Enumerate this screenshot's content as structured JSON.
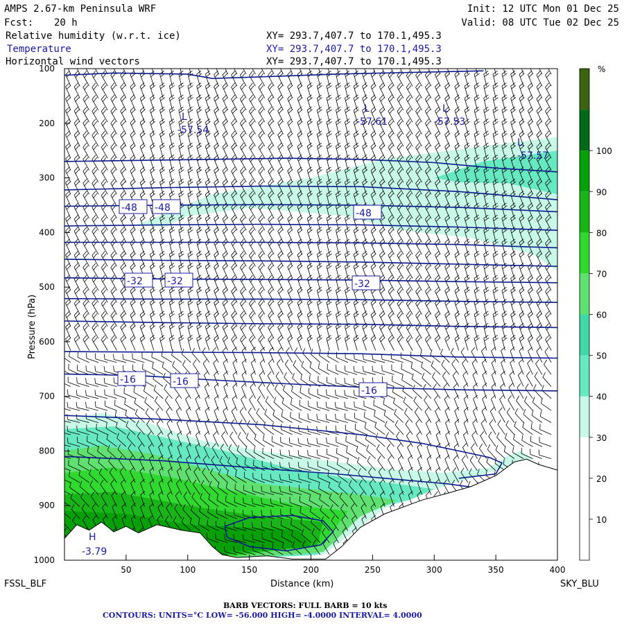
{
  "header": {
    "title": "AMPS 2.67-km Peninsula WRF",
    "fcst_label": "Fcst:",
    "fcst_value": "20 h",
    "init": "Init: 12 UTC Mon 01 Dec 25",
    "valid": "Valid: 08 UTC Tue 02 Dec 25",
    "fields": [
      {
        "name": "Relative humidity (w.r.t. ice)",
        "xy": "XY= 293.7,407.7 to 170.1,495.3",
        "color": "#000000"
      },
      {
        "name": "Temperature",
        "xy": "XY= 293.7,407.7 to 170.1,495.3",
        "color": "#1a1aa0"
      },
      {
        "name": "Horizontal wind vectors",
        "xy": "XY= 293.7,407.7 to 170.1,495.3",
        "color": "#000000"
      }
    ]
  },
  "footer": {
    "left_station": "FSSL_BLF",
    "right_station": "SKY_BLU",
    "barb_note": "BARB VECTORS:  FULL BARB = 10 kts",
    "contour_note": "CONTOURS:  UNITS=°C  LOW= -56.000      HIGH= -4.0000      INTERVAL=    4.0000"
  },
  "chart_data": {
    "type": "cross-section",
    "xlabel": "Distance (km)",
    "ylabel": "Pressure (hPa)",
    "xlim": [
      0,
      400
    ],
    "ylim": [
      1000,
      100
    ],
    "x_ticks": [
      50,
      100,
      150,
      200,
      250,
      300,
      350,
      400
    ],
    "y_ticks": [
      100,
      200,
      300,
      400,
      500,
      600,
      700,
      800,
      900,
      1000
    ],
    "colorbar": {
      "unit": "%",
      "levels": [
        0,
        10,
        20,
        30,
        40,
        50,
        60,
        70,
        80,
        90,
        100,
        110
      ],
      "tick_labels": [
        10,
        20,
        30,
        40,
        50,
        60,
        70,
        80,
        90,
        100
      ],
      "colors": [
        "#ffffff",
        "#ffffff",
        "#ffffff",
        "#c8f8e8",
        "#66e8c0",
        "#40d8a8",
        "#60e070",
        "#30d830",
        "#18b418",
        "#08a008",
        "#006a1a",
        "#3a6410"
      ]
    },
    "rh_layers": [
      {
        "level": 30,
        "color": "#c8f8e8",
        "polygon": [
          [
            60,
            385
          ],
          [
            120,
            330
          ],
          [
            200,
            300
          ],
          [
            260,
            265
          ],
          [
            330,
            245
          ],
          [
            400,
            225
          ],
          [
            400,
            470
          ],
          [
            380,
            440
          ],
          [
            330,
            410
          ],
          [
            270,
            395
          ],
          [
            230,
            370
          ],
          [
            150,
            355
          ],
          [
            100,
            370
          ],
          [
            80,
            390
          ]
        ]
      },
      {
        "level": 40,
        "color": "#66e8c0",
        "polygon": [
          [
            300,
            300
          ],
          [
            340,
            270
          ],
          [
            400,
            250
          ],
          [
            400,
            330
          ],
          [
            360,
            310
          ],
          [
            320,
            308
          ]
        ]
      },
      {
        "level": 30,
        "color": "#c8f8e8",
        "polygon": [
          [
            0,
            745
          ],
          [
            30,
            730
          ],
          [
            70,
            750
          ],
          [
            110,
            780
          ],
          [
            160,
            800
          ],
          [
            220,
            820
          ],
          [
            270,
            835
          ],
          [
            310,
            840
          ],
          [
            345,
            830
          ],
          [
            360,
            808
          ],
          [
            370,
            800
          ],
          [
            380,
            815
          ],
          [
            330,
            850
          ],
          [
            300,
            870
          ],
          [
            260,
            905
          ],
          [
            210,
            990
          ],
          [
            120,
            1000
          ],
          [
            0,
            1000
          ]
        ]
      },
      {
        "level": 40,
        "color": "#66e8c0",
        "polygon": [
          [
            0,
            760
          ],
          [
            40,
            755
          ],
          [
            80,
            775
          ],
          [
            130,
            800
          ],
          [
            180,
            830
          ],
          [
            230,
            850
          ],
          [
            270,
            860
          ],
          [
            300,
            870
          ],
          [
            280,
            890
          ],
          [
            240,
            910
          ],
          [
            205,
            990
          ],
          [
            120,
            1000
          ],
          [
            0,
            1000
          ]
        ]
      },
      {
        "level": 60,
        "color": "#60e070",
        "polygon": [
          [
            0,
            800
          ],
          [
            30,
            790
          ],
          [
            70,
            805
          ],
          [
            110,
            830
          ],
          [
            160,
            860
          ],
          [
            200,
            870
          ],
          [
            240,
            880
          ],
          [
            270,
            890
          ],
          [
            240,
            920
          ],
          [
            210,
            985
          ],
          [
            120,
            1000
          ],
          [
            0,
            1000
          ]
        ]
      },
      {
        "level": 70,
        "color": "#30d830",
        "polygon": [
          [
            0,
            840
          ],
          [
            40,
            830
          ],
          [
            90,
            850
          ],
          [
            140,
            875
          ],
          [
            190,
            900
          ],
          [
            230,
            910
          ],
          [
            210,
            970
          ],
          [
            130,
            995
          ],
          [
            0,
            1000
          ]
        ]
      },
      {
        "level": 80,
        "color": "#18b418",
        "polygon": [
          [
            0,
            880
          ],
          [
            40,
            875
          ],
          [
            100,
            900
          ],
          [
            160,
            920
          ],
          [
            210,
            930
          ],
          [
            205,
            975
          ],
          [
            130,
            990
          ],
          [
            0,
            995
          ]
        ]
      },
      {
        "level": 90,
        "color": "#08a008",
        "polygon": [
          [
            0,
            910
          ],
          [
            50,
            915
          ],
          [
            100,
            935
          ],
          [
            150,
            940
          ],
          [
            190,
            945
          ],
          [
            200,
            975
          ],
          [
            130,
            985
          ],
          [
            0,
            990
          ]
        ]
      }
    ],
    "terrain": [
      [
        0,
        960
      ],
      [
        10,
        935
      ],
      [
        20,
        945
      ],
      [
        30,
        930
      ],
      [
        40,
        948
      ],
      [
        50,
        938
      ],
      [
        60,
        950
      ],
      [
        75,
        935
      ],
      [
        95,
        945
      ],
      [
        110,
        950
      ],
      [
        120,
        975
      ],
      [
        128,
        990
      ],
      [
        140,
        995
      ],
      [
        165,
        992
      ],
      [
        185,
        998
      ],
      [
        212,
        998
      ],
      [
        225,
        975
      ],
      [
        240,
        940
      ],
      [
        260,
        915
      ],
      [
        290,
        890
      ],
      [
        310,
        878
      ],
      [
        330,
        865
      ],
      [
        350,
        845
      ],
      [
        365,
        820
      ],
      [
        375,
        815
      ],
      [
        385,
        825
      ],
      [
        400,
        835
      ],
      [
        400,
        1000
      ],
      [
        0,
        1000
      ]
    ],
    "temperature_contours": [
      {
        "points": [
          [
            0,
            112
          ],
          [
            40,
            108
          ],
          [
            100,
            110
          ],
          [
            120,
            118
          ],
          [
            160,
            115
          ],
          [
            220,
            110
          ],
          [
            280,
            107
          ],
          [
            340,
            104
          ]
        ]
      },
      {
        "points": [
          [
            0,
            270
          ],
          [
            60,
            268
          ],
          [
            120,
            266
          ],
          [
            180,
            264
          ],
          [
            240,
            266
          ],
          [
            300,
            272
          ],
          [
            350,
            282
          ],
          [
            400,
            289
          ]
        ]
      },
      {
        "points": [
          [
            0,
            322
          ],
          [
            80,
            318
          ],
          [
            160,
            315
          ],
          [
            240,
            316
          ],
          [
            320,
            325
          ],
          [
            400,
            340
          ]
        ]
      },
      {
        "points": [
          [
            0,
            352
          ],
          [
            80,
            350
          ],
          [
            160,
            349
          ],
          [
            240,
            350
          ],
          [
            320,
            354
          ],
          [
            400,
            362
          ]
        ]
      },
      {
        "points": [
          [
            0,
            388
          ],
          [
            80,
            386
          ],
          [
            160,
            385
          ],
          [
            240,
            386
          ],
          [
            320,
            390
          ],
          [
            400,
            396
          ]
        ]
      },
      {
        "points": [
          [
            0,
            418
          ],
          [
            80,
            418
          ],
          [
            160,
            418
          ],
          [
            240,
            419
          ],
          [
            320,
            422
          ],
          [
            400,
            428
          ]
        ]
      },
      {
        "points": [
          [
            0,
            449
          ],
          [
            80,
            451
          ],
          [
            160,
            452
          ],
          [
            240,
            454
          ],
          [
            320,
            458
          ],
          [
            400,
            462
          ]
        ]
      },
      {
        "points": [
          [
            0,
            483
          ],
          [
            80,
            485
          ],
          [
            160,
            486
          ],
          [
            240,
            487
          ],
          [
            320,
            490
          ],
          [
            400,
            492
          ]
        ]
      },
      {
        "points": [
          [
            0,
            521
          ],
          [
            80,
            522
          ],
          [
            160,
            522
          ],
          [
            240,
            523
          ],
          [
            320,
            526
          ],
          [
            400,
            528
          ]
        ]
      },
      {
        "points": [
          [
            0,
            562
          ],
          [
            80,
            565
          ],
          [
            160,
            567
          ],
          [
            240,
            568
          ],
          [
            320,
            572
          ],
          [
            400,
            574
          ]
        ]
      },
      {
        "points": [
          [
            0,
            618
          ],
          [
            80,
            619
          ],
          [
            160,
            620
          ],
          [
            240,
            622
          ],
          [
            320,
            628
          ],
          [
            400,
            630
          ]
        ]
      },
      {
        "points": [
          [
            0,
            659
          ],
          [
            60,
            662
          ],
          [
            120,
            670
          ],
          [
            180,
            677
          ],
          [
            240,
            683
          ],
          [
            320,
            688
          ],
          [
            400,
            690
          ]
        ]
      },
      {
        "points": [
          [
            0,
            735
          ],
          [
            80,
            742
          ],
          [
            160,
            752
          ],
          [
            240,
            770
          ],
          [
            290,
            786
          ],
          [
            320,
            800
          ],
          [
            345,
            812
          ],
          [
            355,
            822
          ],
          [
            350,
            842
          ],
          [
            320,
            850
          ]
        ]
      },
      {
        "points": [
          [
            0,
            810
          ],
          [
            80,
            818
          ],
          [
            160,
            832
          ],
          [
            220,
            842
          ],
          [
            270,
            852
          ],
          [
            310,
            860
          ],
          [
            330,
            866
          ]
        ]
      },
      {
        "points": [
          [
            130,
            938
          ],
          [
            150,
            922
          ],
          [
            185,
            918
          ],
          [
            210,
            928
          ],
          [
            218,
            948
          ],
          [
            208,
            972
          ],
          [
            180,
            983
          ],
          [
            150,
            975
          ],
          [
            132,
            958
          ],
          [
            130,
            938
          ]
        ]
      }
    ],
    "contour_labels": [
      "-57.54",
      "-57.61",
      "-57.53",
      "-57.57",
      "-48",
      "-48",
      "-48",
      "-32",
      "-32",
      "-32",
      "-16",
      "-16",
      "-16",
      "-3.79"
    ],
    "extremum_labels": [
      "L",
      "L",
      "L",
      "L",
      "H"
    ]
  }
}
